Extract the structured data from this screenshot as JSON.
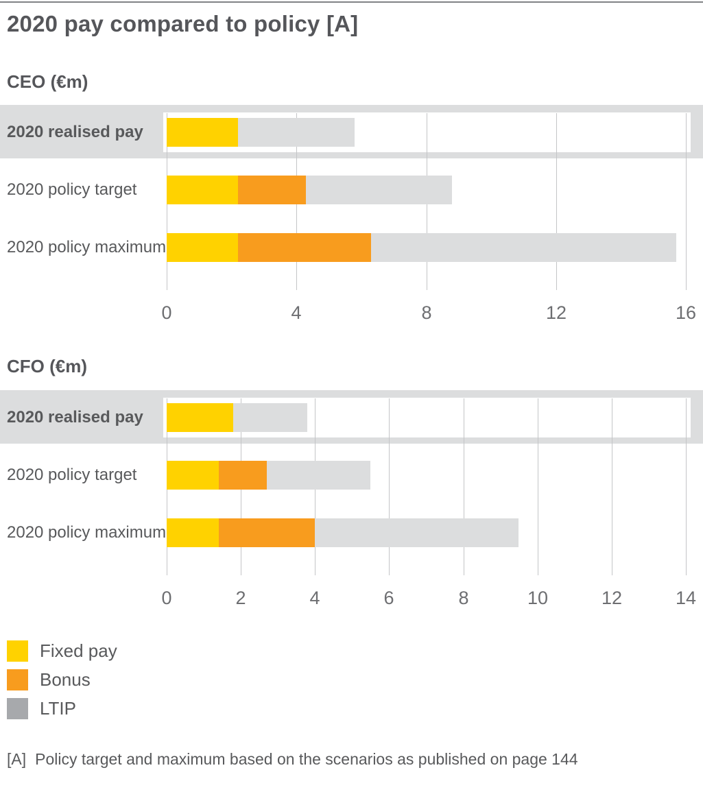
{
  "title": "2020 pay compared to policy [A]",
  "colors": {
    "fixed_pay": "#FFD200",
    "bonus": "#F89C1E",
    "ltip_bar": "#DCDDDE",
    "ltip_legend": "#A7A9AC",
    "highlight_band": "#DCDDDE",
    "gridline": "#C4C5C7",
    "text": "#58595B"
  },
  "chart_data": [
    {
      "type": "bar",
      "orientation": "horizontal",
      "subtitle": "CEO (€m)",
      "unit": "€m",
      "categories": [
        "2020 realised pay",
        "2020 policy target",
        "2020 policy maximum"
      ],
      "highlighted_category": "2020 realised pay",
      "series": [
        {
          "name": "Fixed pay",
          "color": "#FFD200",
          "values": [
            2.2,
            2.2,
            2.2
          ]
        },
        {
          "name": "Bonus",
          "color": "#F89C1E",
          "values": [
            0,
            2.1,
            4.1
          ]
        },
        {
          "name": "LTIP",
          "color": "#DCDDDE",
          "values": [
            3.6,
            4.5,
            9.4
          ]
        }
      ],
      "totals": [
        5.8,
        8.8,
        15.7
      ],
      "xlim": [
        0,
        16
      ],
      "xticks": [
        0,
        4,
        8,
        12,
        16
      ],
      "grid": true,
      "legend_position": "bottom"
    },
    {
      "type": "bar",
      "orientation": "horizontal",
      "subtitle": "CFO (€m)",
      "unit": "€m",
      "categories": [
        "2020 realised pay",
        "2020 policy target",
        "2020 policy maximum"
      ],
      "highlighted_category": "2020 realised pay",
      "series": [
        {
          "name": "Fixed pay",
          "color": "#FFD200",
          "values": [
            1.8,
            1.4,
            1.4
          ]
        },
        {
          "name": "Bonus",
          "color": "#F89C1E",
          "values": [
            0,
            1.3,
            2.6
          ]
        },
        {
          "name": "LTIP",
          "color": "#DCDDDE",
          "values": [
            2.0,
            2.8,
            5.5
          ]
        }
      ],
      "totals": [
        3.8,
        5.5,
        9.5
      ],
      "xlim": [
        0,
        14
      ],
      "xticks": [
        0,
        2,
        4,
        6,
        8,
        10,
        12,
        14
      ],
      "grid": true,
      "legend_position": "bottom"
    }
  ],
  "legend": {
    "items": [
      {
        "label": "Fixed pay",
        "color": "#FFD200"
      },
      {
        "label": "Bonus",
        "color": "#F89C1E"
      },
      {
        "label": "LTIP",
        "color": "#A7A9AC"
      }
    ]
  },
  "footnote": {
    "marker": "[A]",
    "text": "Policy target and maximum based on the scenarios as published on page 144"
  }
}
